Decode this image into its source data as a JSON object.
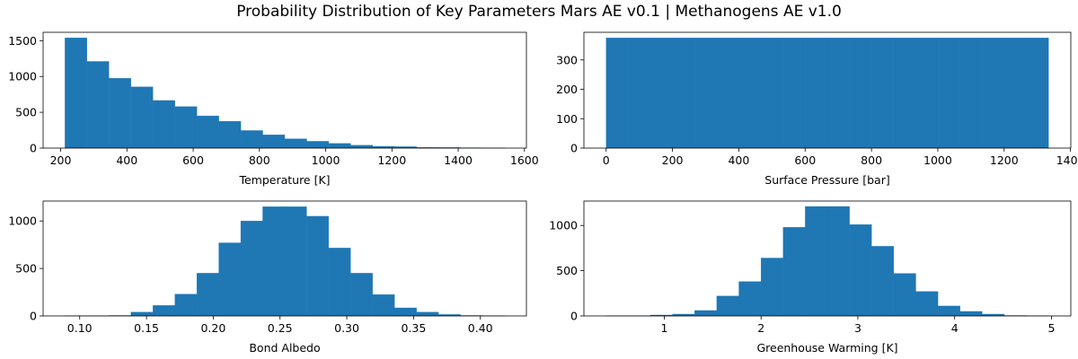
{
  "title": "Probability Distribution of Key Parameters  Mars AE v0.1 | Methanogens AE v1.0",
  "chart_data": [
    {
      "type": "histogram",
      "xlabel": "Temperature [K]",
      "color": "#1f77b4",
      "bins": [
        213,
        279.35,
        345.7,
        412.05,
        478.4,
        544.75,
        611.1,
        677.45,
        743.8,
        810.15,
        876.5,
        942.85,
        1009.2,
        1075.55,
        1141.9,
        1208.25,
        1274.6,
        1340.95,
        1407.3,
        1473.65,
        1540
      ],
      "counts": [
        1540,
        1210,
        975,
        855,
        665,
        580,
        450,
        375,
        245,
        185,
        130,
        95,
        65,
        40,
        25,
        20,
        10,
        8,
        5,
        3
      ],
      "xlim": [
        147,
        1606
      ],
      "ylim": [
        0,
        1617
      ],
      "xticks": [
        200,
        400,
        600,
        800,
        1000,
        1200,
        1400,
        1600
      ],
      "yticks": [
        0,
        500,
        1000,
        1500
      ]
    },
    {
      "type": "histogram",
      "xlabel": "Surface Pressure [bar]",
      "color": "#1f77b4",
      "bins": [
        0,
        66.7,
        133.4,
        200.1,
        266.8,
        333.5,
        400.2,
        466.9,
        533.6,
        600.3,
        667,
        733.7,
        800.4,
        867.1,
        933.8,
        1000.5,
        1067.2,
        1133.9,
        1200.6,
        1267.3,
        1334
      ],
      "counts": [
        375,
        375,
        375,
        375,
        375,
        375,
        375,
        375,
        375,
        375,
        375,
        375,
        375,
        375,
        375,
        375,
        375,
        375,
        375,
        375
      ],
      "xlim": [
        -67,
        1401
      ],
      "ylim": [
        0,
        394
      ],
      "xticks": [
        0,
        200,
        400,
        600,
        800,
        1000,
        1200,
        1400
      ],
      "yticks": [
        0,
        100,
        200,
        300
      ]
    },
    {
      "type": "histogram",
      "xlabel": "Bond Albedo",
      "color": "#1f77b4",
      "bins": [
        0.089,
        0.10545,
        0.1219,
        0.13835,
        0.1548,
        0.17125,
        0.1877,
        0.20415,
        0.2206,
        0.23705,
        0.2535,
        0.26995,
        0.2864,
        0.30285,
        0.3193,
        0.33575,
        0.3522,
        0.36865,
        0.3851,
        0.40155,
        0.418
      ],
      "counts": [
        2,
        3,
        5,
        40,
        110,
        230,
        450,
        770,
        1000,
        1150,
        1150,
        1050,
        715,
        450,
        225,
        85,
        40,
        15,
        5,
        2
      ],
      "xlim": [
        0.0726,
        0.4345
      ],
      "ylim": [
        0,
        1210
      ],
      "xticks": [
        {
          "value": 0.1,
          "label": "0.10"
        },
        0.15,
        {
          "value": 0.2,
          "label": "0.20"
        },
        0.25,
        {
          "value": 0.3,
          "label": "0.30"
        },
        0.35,
        {
          "value": 0.4,
          "label": "0.40"
        }
      ],
      "yticks": [
        0,
        500,
        1000
      ]
    },
    {
      "type": "histogram",
      "xlabel": "Greenhouse Warming [K]",
      "color": "#1f77b4",
      "bins": [
        0.4,
        0.6285,
        0.857,
        1.0855,
        1.314,
        1.5425,
        1.771,
        1.9995,
        2.228,
        2.4565,
        2.685,
        2.9135,
        3.142,
        3.3705,
        3.599,
        3.8275,
        4.056,
        4.2845,
        4.513,
        4.7415,
        4.97
      ],
      "counts": [
        2,
        3,
        10,
        20,
        60,
        220,
        380,
        640,
        980,
        1210,
        1210,
        1010,
        770,
        470,
        270,
        110,
        50,
        20,
        5,
        2
      ],
      "xlim": [
        0.17,
        5.2
      ],
      "ylim": [
        0,
        1270
      ],
      "xticks": [
        1,
        2,
        3,
        4,
        5
      ],
      "yticks": [
        0,
        500,
        1000
      ]
    }
  ]
}
